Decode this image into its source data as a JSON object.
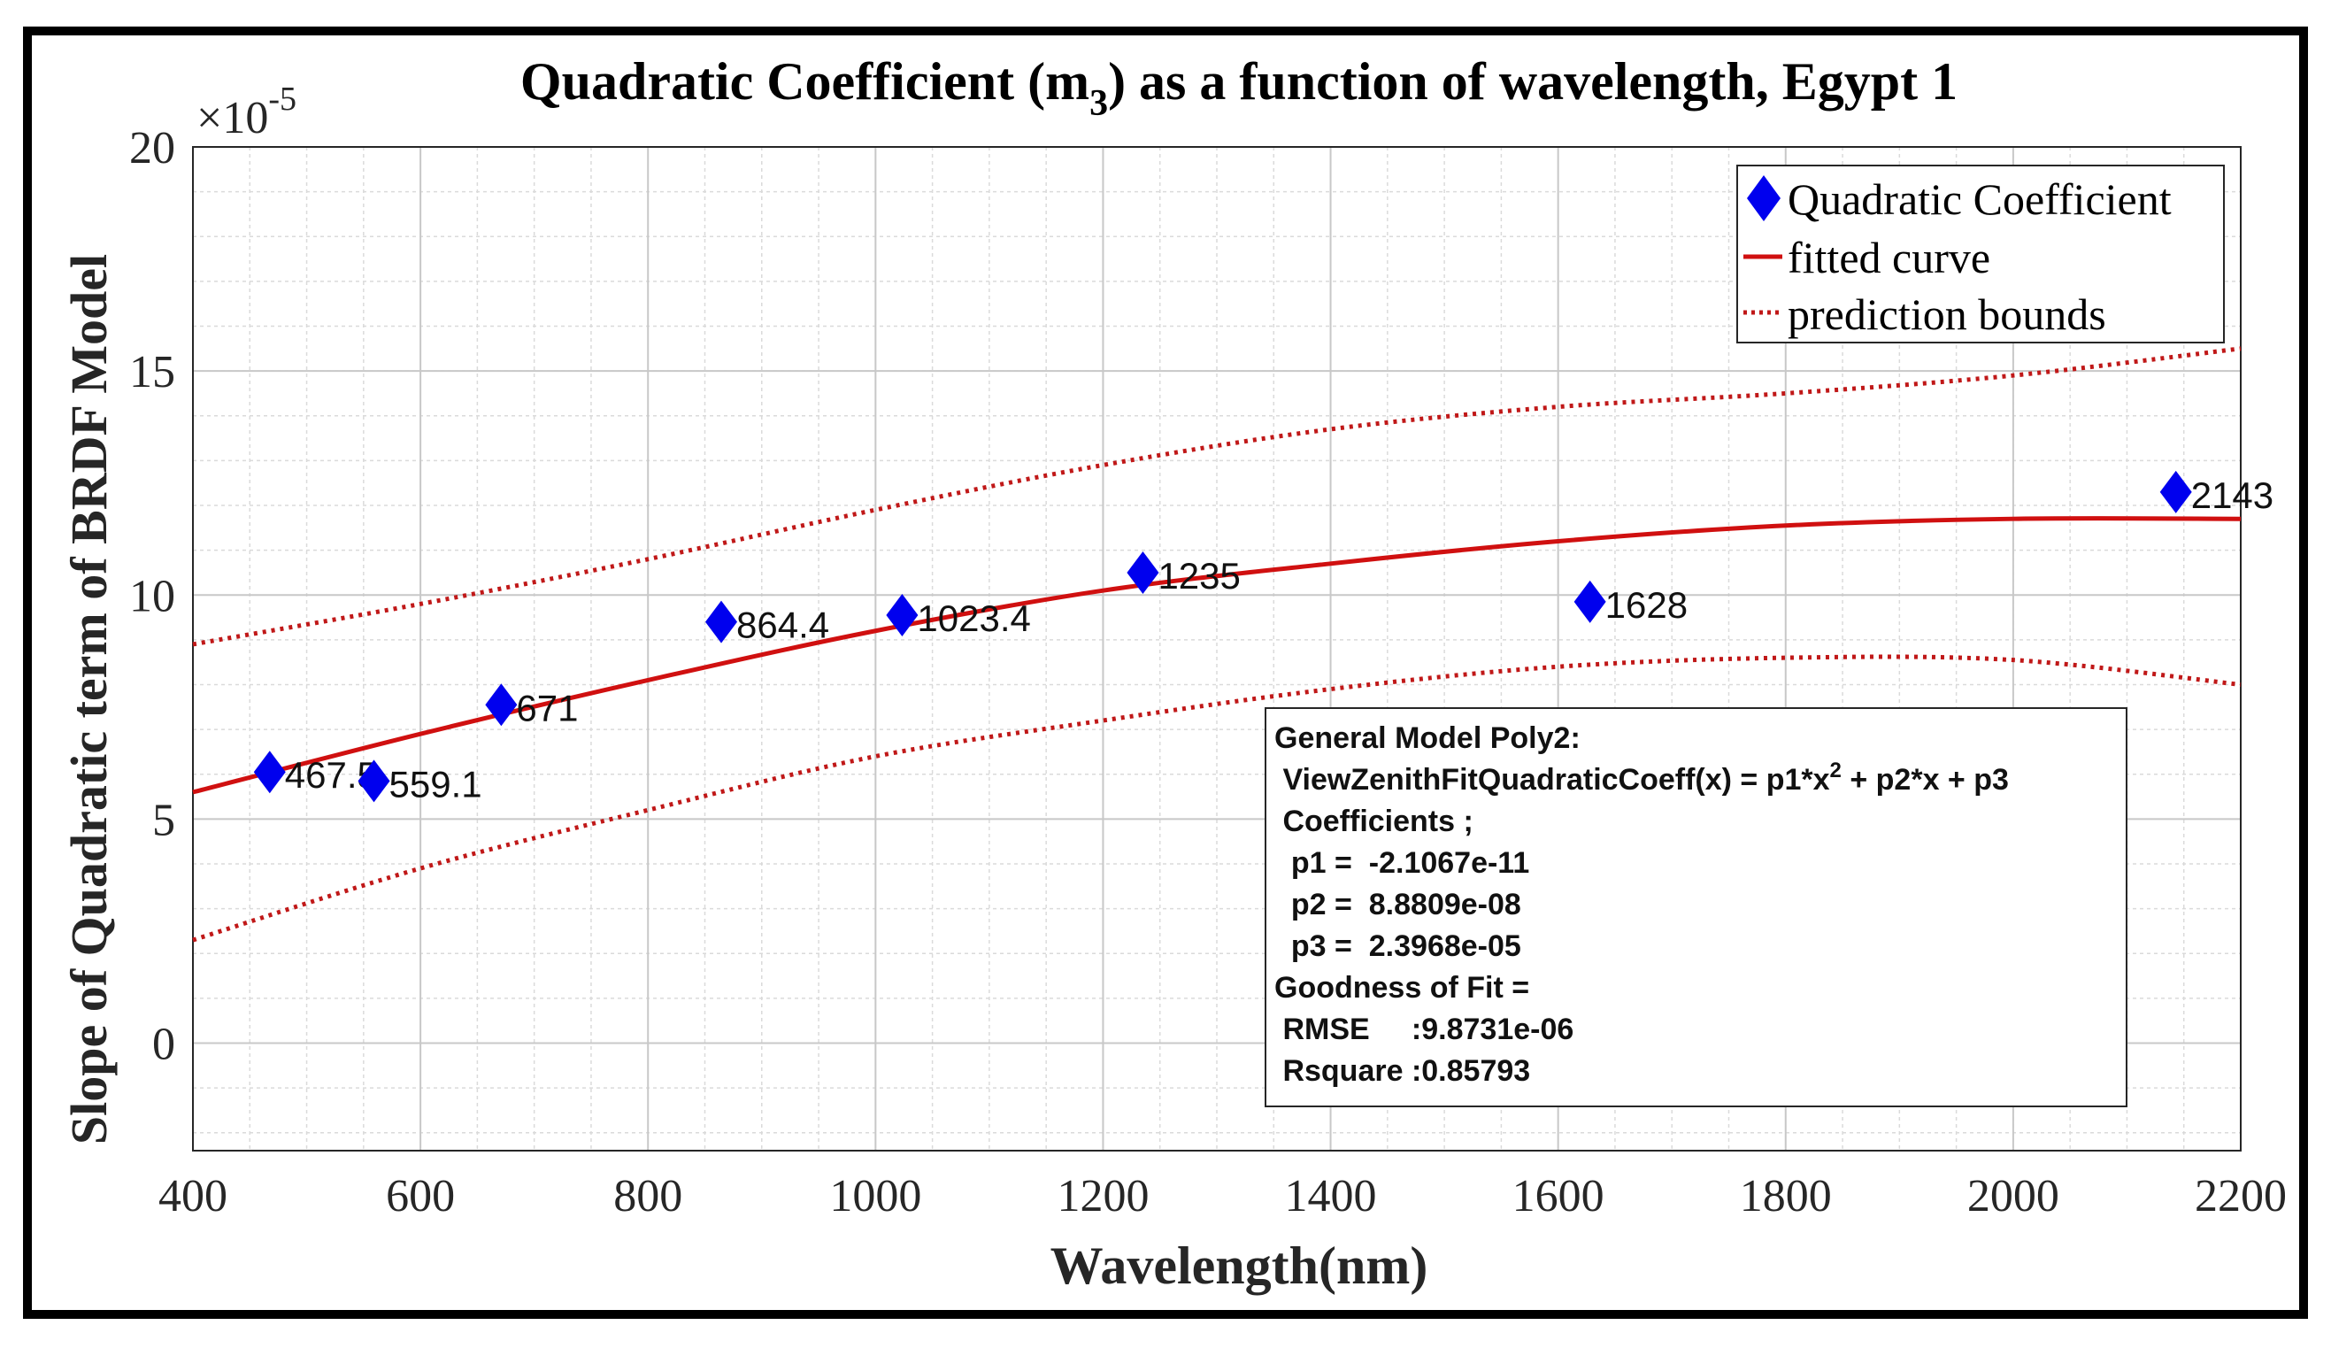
{
  "chart_data": {
    "type": "scatter",
    "title": "Quadratic Coefficient (m",
    "title_subscript": "3",
    "title_suffix": ") as a function of wavelength, Egypt 1",
    "xlabel": "Wavelength(nm)",
    "ylabel": "Slope of Quadratic term of BRDF Model",
    "y_exponent_prefix": "×10",
    "y_exponent": "-5",
    "xlim": [
      400,
      2200
    ],
    "ylim": [
      -2.4,
      20
    ],
    "x_ticks": [
      400,
      600,
      800,
      1000,
      1200,
      1400,
      1600,
      1800,
      2000,
      2200
    ],
    "y_ticks": [
      0,
      5,
      10,
      15,
      20
    ],
    "grid": true,
    "minor_grid": true,
    "legend_position": "top-right",
    "colors": {
      "points": "#0000ee",
      "fit": "#d01010",
      "bounds": "#c01818"
    },
    "series": [
      {
        "name": "Quadratic Coefficient",
        "kind": "scatter",
        "points": [
          {
            "x": 467.5,
            "y": 6.05,
            "label": "467.5"
          },
          {
            "x": 559.1,
            "y": 5.85,
            "label": "559.1"
          },
          {
            "x": 671,
            "y": 7.55,
            "label": "671"
          },
          {
            "x": 864.4,
            "y": 9.4,
            "label": "864.4"
          },
          {
            "x": 1023.4,
            "y": 9.55,
            "label": "1023.4"
          },
          {
            "x": 1235,
            "y": 10.5,
            "label": "1235"
          },
          {
            "x": 1628,
            "y": 9.85,
            "label": "1628"
          },
          {
            "x": 2143,
            "y": 12.3,
            "label": "2143"
          }
        ]
      },
      {
        "name": "fitted curve",
        "kind": "line",
        "points": [
          {
            "x": 400,
            "y": 5.6
          },
          {
            "x": 600,
            "y": 6.9
          },
          {
            "x": 800,
            "y": 8.1
          },
          {
            "x": 1000,
            "y": 9.2
          },
          {
            "x": 1200,
            "y": 10.1
          },
          {
            "x": 1400,
            "y": 10.7
          },
          {
            "x": 1600,
            "y": 11.2
          },
          {
            "x": 1800,
            "y": 11.55
          },
          {
            "x": 2000,
            "y": 11.7
          },
          {
            "x": 2200,
            "y": 11.7
          }
        ]
      },
      {
        "name": "prediction bounds",
        "kind": "dotted",
        "upper": [
          {
            "x": 400,
            "y": 8.9
          },
          {
            "x": 600,
            "y": 9.8
          },
          {
            "x": 800,
            "y": 10.8
          },
          {
            "x": 1000,
            "y": 11.9
          },
          {
            "x": 1200,
            "y": 12.9
          },
          {
            "x": 1400,
            "y": 13.7
          },
          {
            "x": 1600,
            "y": 14.2
          },
          {
            "x": 1800,
            "y": 14.5
          },
          {
            "x": 2000,
            "y": 14.9
          },
          {
            "x": 2200,
            "y": 15.5
          }
        ],
        "lower": [
          {
            "x": 400,
            "y": 2.3
          },
          {
            "x": 600,
            "y": 3.9
          },
          {
            "x": 800,
            "y": 5.2
          },
          {
            "x": 1000,
            "y": 6.4
          },
          {
            "x": 1200,
            "y": 7.2
          },
          {
            "x": 1400,
            "y": 7.9
          },
          {
            "x": 1600,
            "y": 8.4
          },
          {
            "x": 1800,
            "y": 8.6
          },
          {
            "x": 2000,
            "y": 8.55
          },
          {
            "x": 2200,
            "y": 8.0
          }
        ]
      }
    ],
    "annotation_box": {
      "lines": [
        {
          "text": "General Model Poly2:",
          "sup": ""
        },
        {
          "text": " ViewZenithFitQuadraticCoeff(x) = p1*x",
          "sup": "2",
          "after": " + p2*x + p3"
        },
        {
          "text": " Coefficients ;",
          "sup": ""
        },
        {
          "text": "  p1 =  -2.1067e-11",
          "sup": ""
        },
        {
          "text": "  p2 =  8.8809e-08",
          "sup": ""
        },
        {
          "text": "  p3 =  2.3968e-05",
          "sup": ""
        },
        {
          "text": "Goodness of Fit =",
          "sup": ""
        },
        {
          "text": " RMSE     :9.8731e-06",
          "sup": ""
        },
        {
          "text": " Rsquare :0.85793",
          "sup": ""
        }
      ]
    }
  }
}
